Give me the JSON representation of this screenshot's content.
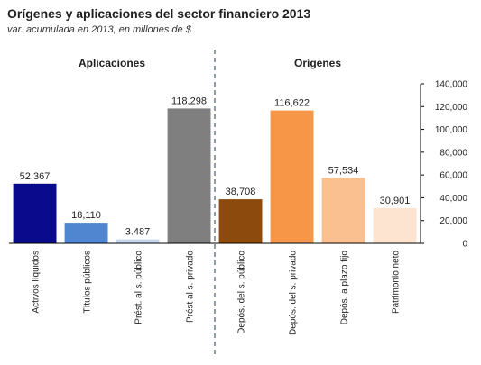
{
  "chart_data": {
    "type": "bar",
    "title": "Orígenes y aplicaciones del sector financiero 2013",
    "subtitle": "var. acumulada en 2013, en millones de $",
    "groups": [
      {
        "label": "Aplicaciones",
        "indices": [
          0,
          1,
          2,
          3
        ]
      },
      {
        "label": "Orígenes",
        "indices": [
          4,
          5,
          6,
          7
        ]
      }
    ],
    "categories": [
      "Activos líquidos",
      "Títulos públicos",
      "Prést. al s. público",
      "Prést al s. privado",
      "Depós. del s. público",
      "Depós. del s. privado",
      "Depós. a plazo fijo",
      "Patrimonio neto"
    ],
    "values": [
      52367,
      18110,
      3487,
      118298,
      38708,
      116622,
      57534,
      30901
    ],
    "data_labels": [
      "52,367",
      "18,110",
      "3.487",
      "118,298",
      "38,708",
      "116,622",
      "57,534",
      "30,901"
    ],
    "colors": [
      "#0a0a8c",
      "#4f86cf",
      "#c5d6ee",
      "#7f7f7f",
      "#8c4a0c",
      "#f79646",
      "#fac08f",
      "#fde4d0"
    ],
    "ylim": [
      0,
      140000
    ],
    "yticks": [
      0,
      20000,
      40000,
      60000,
      80000,
      100000,
      120000,
      140000
    ],
    "ytick_labels": [
      "0",
      "20,000",
      "40,000",
      "60,000",
      "80,000",
      "100,000",
      "120,000",
      "140,000"
    ],
    "y_axis_position": "right",
    "grid": false,
    "legend": "none"
  }
}
